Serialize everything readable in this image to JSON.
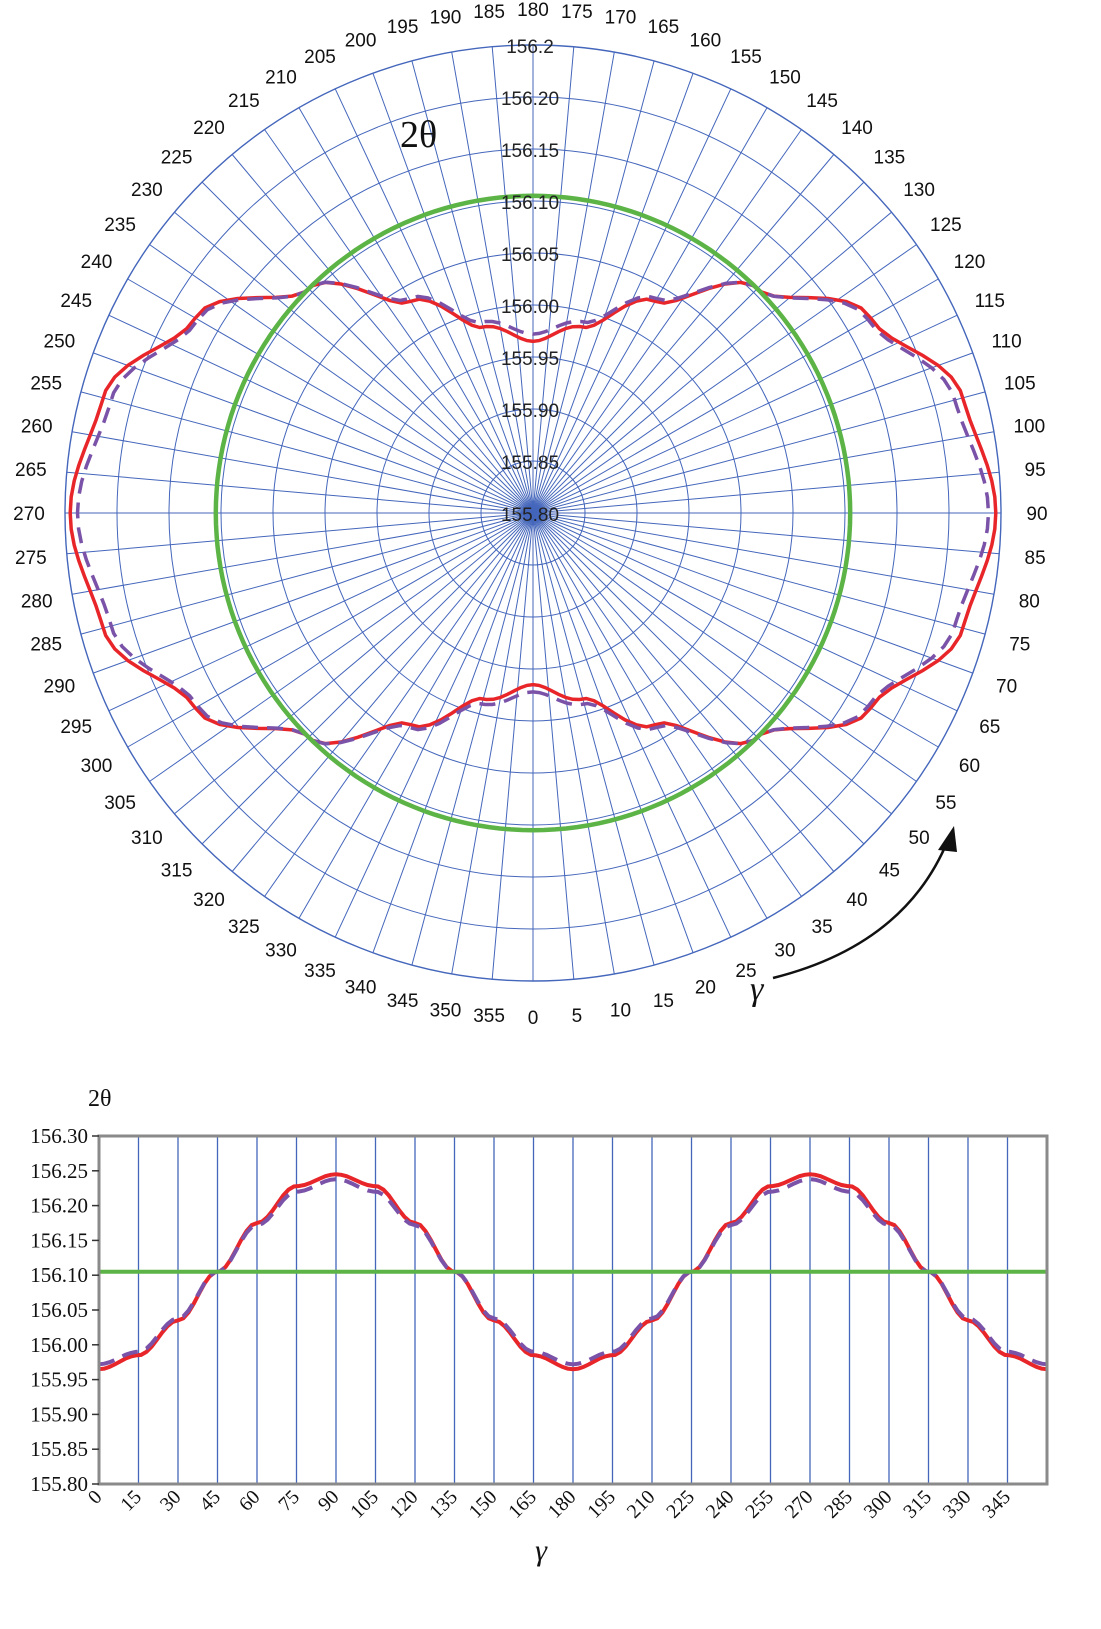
{
  "colors": {
    "grid": "#4466bb",
    "grid_light": "#7f95d0",
    "frame": "#8a8a8a",
    "series_solid": "#e8262a",
    "series_dashed": "#7a52a8",
    "series_reference": "#5cb346",
    "arrow": "#111111"
  },
  "chart_data": [
    {
      "type": "polar",
      "angular_label": "γ",
      "radial_label": "2θ",
      "angle_zero_direction": "bottom",
      "angle_direction": "counterclockwise",
      "angle_ticks": [
        0,
        5,
        10,
        15,
        20,
        25,
        30,
        35,
        40,
        45,
        50,
        55,
        60,
        65,
        70,
        75,
        80,
        85,
        90,
        95,
        100,
        105,
        110,
        115,
        120,
        125,
        130,
        135,
        140,
        145,
        150,
        155,
        160,
        165,
        170,
        175,
        180,
        185,
        190,
        195,
        200,
        205,
        210,
        215,
        220,
        225,
        230,
        235,
        240,
        245,
        250,
        255,
        260,
        265,
        270,
        275,
        280,
        285,
        290,
        295,
        300,
        305,
        310,
        315,
        320,
        325,
        330,
        335,
        340,
        345,
        350,
        355
      ],
      "radial_ticks": [
        "155.80",
        "155.85",
        "155.90",
        "155.95",
        "156.00",
        "156.05",
        "156.10",
        "156.15",
        "156.20",
        "156.2"
      ],
      "rlim": [
        155.8,
        156.25
      ],
      "grid": true,
      "series": [
        {
          "style": "solid",
          "color_key": "series_solid",
          "gamma": [
            0,
            15,
            30,
            45,
            60,
            75,
            90,
            105,
            120,
            135,
            150,
            165,
            180,
            195,
            210,
            225,
            240,
            255,
            270,
            285,
            300,
            315,
            330,
            345,
            360
          ],
          "values": [
            155.965,
            155.985,
            156.035,
            156.105,
            156.175,
            156.228,
            156.245,
            156.228,
            156.175,
            156.105,
            156.035,
            155.985,
            155.965,
            155.985,
            156.035,
            156.105,
            156.175,
            156.228,
            156.245,
            156.228,
            156.175,
            156.105,
            156.035,
            155.985,
            155.965
          ]
        },
        {
          "style": "dashed",
          "color_key": "series_dashed",
          "gamma": [
            0,
            15,
            30,
            45,
            60,
            75,
            90,
            105,
            120,
            135,
            150,
            165,
            180,
            195,
            210,
            225,
            240,
            255,
            270,
            285,
            300,
            315,
            330,
            345,
            360
          ],
          "values": [
            155.972,
            155.99,
            156.038,
            156.105,
            156.172,
            156.22,
            156.238,
            156.22,
            156.172,
            156.105,
            156.038,
            155.99,
            155.972,
            155.99,
            156.038,
            156.105,
            156.172,
            156.22,
            156.238,
            156.22,
            156.172,
            156.105,
            156.038,
            155.99,
            155.972
          ]
        },
        {
          "style": "solid",
          "color_key": "series_reference",
          "gamma": [
            0,
            90,
            180,
            270,
            360
          ],
          "values": [
            156.105,
            156.105,
            156.105,
            156.105,
            156.105
          ]
        }
      ]
    },
    {
      "type": "line",
      "xlabel": "γ",
      "ylabel": "2θ",
      "x_ticks": [
        0,
        15,
        30,
        45,
        60,
        75,
        90,
        105,
        120,
        135,
        150,
        165,
        180,
        195,
        210,
        225,
        240,
        255,
        270,
        285,
        300,
        315,
        330,
        345
      ],
      "y_ticks": [
        "155.80",
        "155.85",
        "155.90",
        "155.95",
        "156.00",
        "156.05",
        "156.10",
        "156.15",
        "156.20",
        "156.25",
        "156.30"
      ],
      "xlim": [
        0,
        360
      ],
      "ylim": [
        155.8,
        156.3
      ],
      "grid": "vertical",
      "series": [
        {
          "style": "solid",
          "color_key": "series_solid",
          "x": [
            0,
            15,
            30,
            45,
            60,
            75,
            90,
            105,
            120,
            135,
            150,
            165,
            180,
            195,
            210,
            225,
            240,
            255,
            270,
            285,
            300,
            315,
            330,
            345,
            360
          ],
          "values": [
            155.965,
            155.985,
            156.035,
            156.105,
            156.175,
            156.228,
            156.245,
            156.228,
            156.175,
            156.105,
            156.035,
            155.985,
            155.965,
            155.985,
            156.035,
            156.105,
            156.175,
            156.228,
            156.245,
            156.228,
            156.175,
            156.105,
            156.035,
            155.985,
            155.965
          ]
        },
        {
          "style": "dashed",
          "color_key": "series_dashed",
          "x": [
            0,
            15,
            30,
            45,
            60,
            75,
            90,
            105,
            120,
            135,
            150,
            165,
            180,
            195,
            210,
            225,
            240,
            255,
            270,
            285,
            300,
            315,
            330,
            345,
            360
          ],
          "values": [
            155.972,
            155.99,
            156.038,
            156.105,
            156.172,
            156.22,
            156.238,
            156.22,
            156.172,
            156.105,
            156.038,
            155.99,
            155.972,
            155.99,
            156.038,
            156.105,
            156.172,
            156.22,
            156.238,
            156.22,
            156.172,
            156.105,
            156.038,
            155.99,
            155.972
          ]
        },
        {
          "style": "solid",
          "color_key": "series_reference",
          "x": [
            0,
            360
          ],
          "values": [
            156.105,
            156.105
          ]
        }
      ]
    }
  ]
}
